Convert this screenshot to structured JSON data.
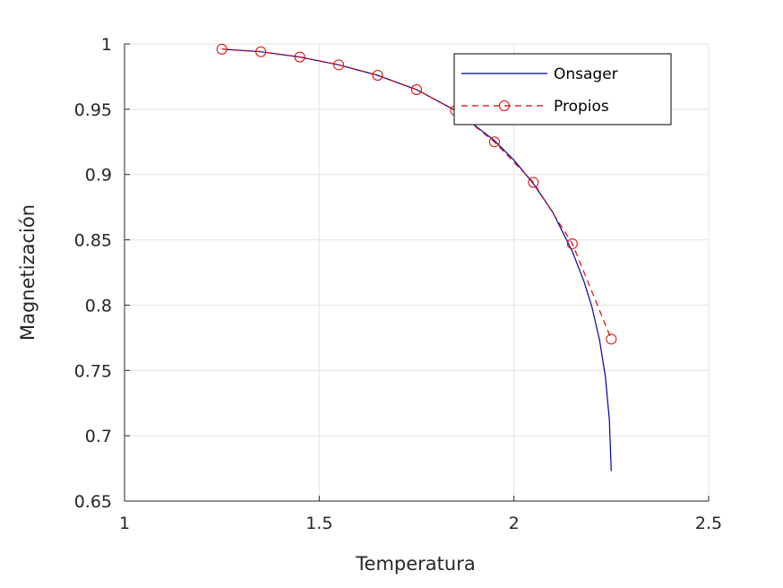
{
  "chart_data": {
    "type": "line",
    "xlabel": "Temperatura",
    "ylabel": "Magnetización",
    "xlim": [
      1,
      2.5
    ],
    "ylim": [
      0.65,
      1
    ],
    "xticks": [
      "1",
      "1.5",
      "2",
      "2.5"
    ],
    "xtick_values": [
      1,
      1.5,
      2,
      2.5
    ],
    "yticks": [
      "0.65",
      "0.7",
      "0.75",
      "0.8",
      "0.85",
      "0.9",
      "0.95",
      "1"
    ],
    "ytick_values": [
      0.65,
      0.7,
      0.75,
      0.8,
      0.85,
      0.9,
      0.95,
      1
    ],
    "grid": true,
    "legend_position": "top-right",
    "series": [
      {
        "name": "Onsager",
        "style": "solid line",
        "color": "#0000aa",
        "x": [
          1.25,
          1.35,
          1.45,
          1.55,
          1.65,
          1.75,
          1.85,
          1.95,
          2.0,
          2.05,
          2.1,
          2.15,
          2.18,
          2.2,
          2.22,
          2.235,
          2.245,
          2.25
        ],
        "y": [
          0.996,
          0.994,
          0.99,
          0.984,
          0.976,
          0.965,
          0.949,
          0.926,
          0.911,
          0.893,
          0.871,
          0.841,
          0.818,
          0.799,
          0.773,
          0.745,
          0.712,
          0.673
        ]
      },
      {
        "name": "Propios",
        "style": "dashed line with circle markers",
        "color": "#dd0000",
        "x": [
          1.25,
          1.35,
          1.45,
          1.55,
          1.65,
          1.75,
          1.85,
          1.95,
          2.05,
          2.15,
          2.25
        ],
        "y": [
          0.996,
          0.994,
          0.99,
          0.984,
          0.976,
          0.965,
          0.949,
          0.925,
          0.894,
          0.847,
          0.774
        ]
      }
    ]
  }
}
